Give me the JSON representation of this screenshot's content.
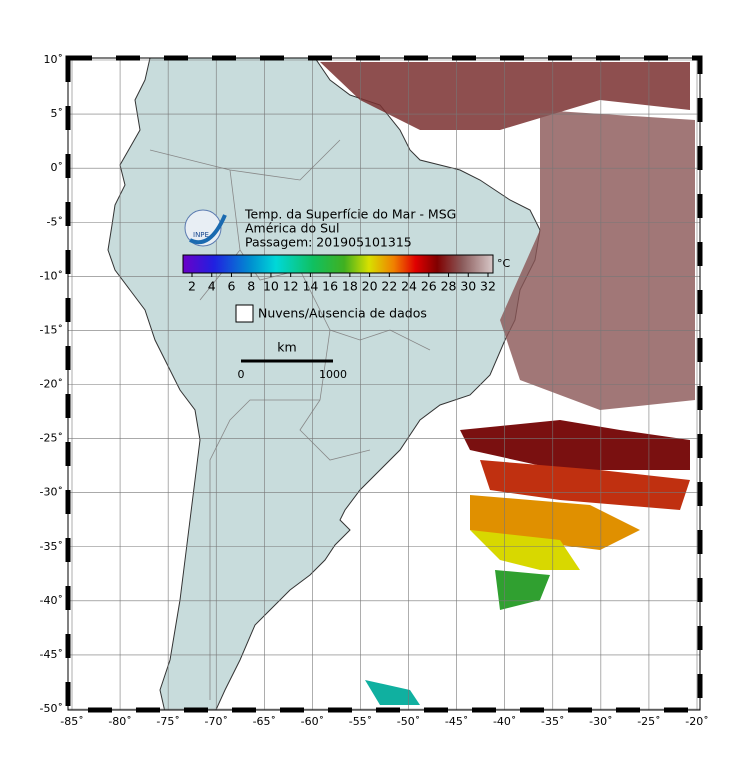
{
  "map": {
    "title": "Temp. da Superfície do Mar - MSG",
    "region": "América do Sul",
    "pass": "Passagem: 201905101315",
    "logo": "INPE",
    "colorbar": {
      "ticks": [
        2,
        4,
        6,
        8,
        10,
        12,
        14,
        16,
        18,
        20,
        22,
        24,
        26,
        28,
        30,
        32
      ],
      "unit": "°C"
    },
    "legend": "Nuvens/Ausencia de dados",
    "scale": {
      "unit": "km",
      "labels": [
        "0",
        "1000"
      ]
    },
    "lon_ticks": [
      {
        "value": -85,
        "label": "-85˚"
      },
      {
        "value": -80,
        "label": "-80˚"
      },
      {
        "value": -75,
        "label": "-75˚"
      },
      {
        "value": -70,
        "label": "-70˚"
      },
      {
        "value": -65,
        "label": "-65˚"
      },
      {
        "value": -60,
        "label": "-60˚"
      },
      {
        "value": -55,
        "label": "-55˚"
      },
      {
        "value": -50,
        "label": "-50˚"
      },
      {
        "value": -45,
        "label": "-45˚"
      },
      {
        "value": -40,
        "label": "-40˚"
      },
      {
        "value": -35,
        "label": "-35˚"
      },
      {
        "value": -30,
        "label": "-30˚"
      },
      {
        "value": -25,
        "label": "-25˚"
      },
      {
        "value": -20,
        "label": "-20˚"
      }
    ],
    "lat_ticks": [
      {
        "value": 10,
        "label": "10˚"
      },
      {
        "value": 5,
        "label": "5˚"
      },
      {
        "value": 0,
        "label": "0˚"
      },
      {
        "value": -5,
        "label": "-5˚"
      },
      {
        "value": -10,
        "label": "-10˚"
      },
      {
        "value": -15,
        "label": "-15˚"
      },
      {
        "value": -20,
        "label": "-20˚"
      },
      {
        "value": -25,
        "label": "-25˚"
      },
      {
        "value": -30,
        "label": "-30˚"
      },
      {
        "value": -35,
        "label": "-35˚"
      },
      {
        "value": -40,
        "label": "-40˚"
      },
      {
        "value": -45,
        "label": "-45˚"
      },
      {
        "value": -50,
        "label": "-50˚"
      }
    ]
  }
}
